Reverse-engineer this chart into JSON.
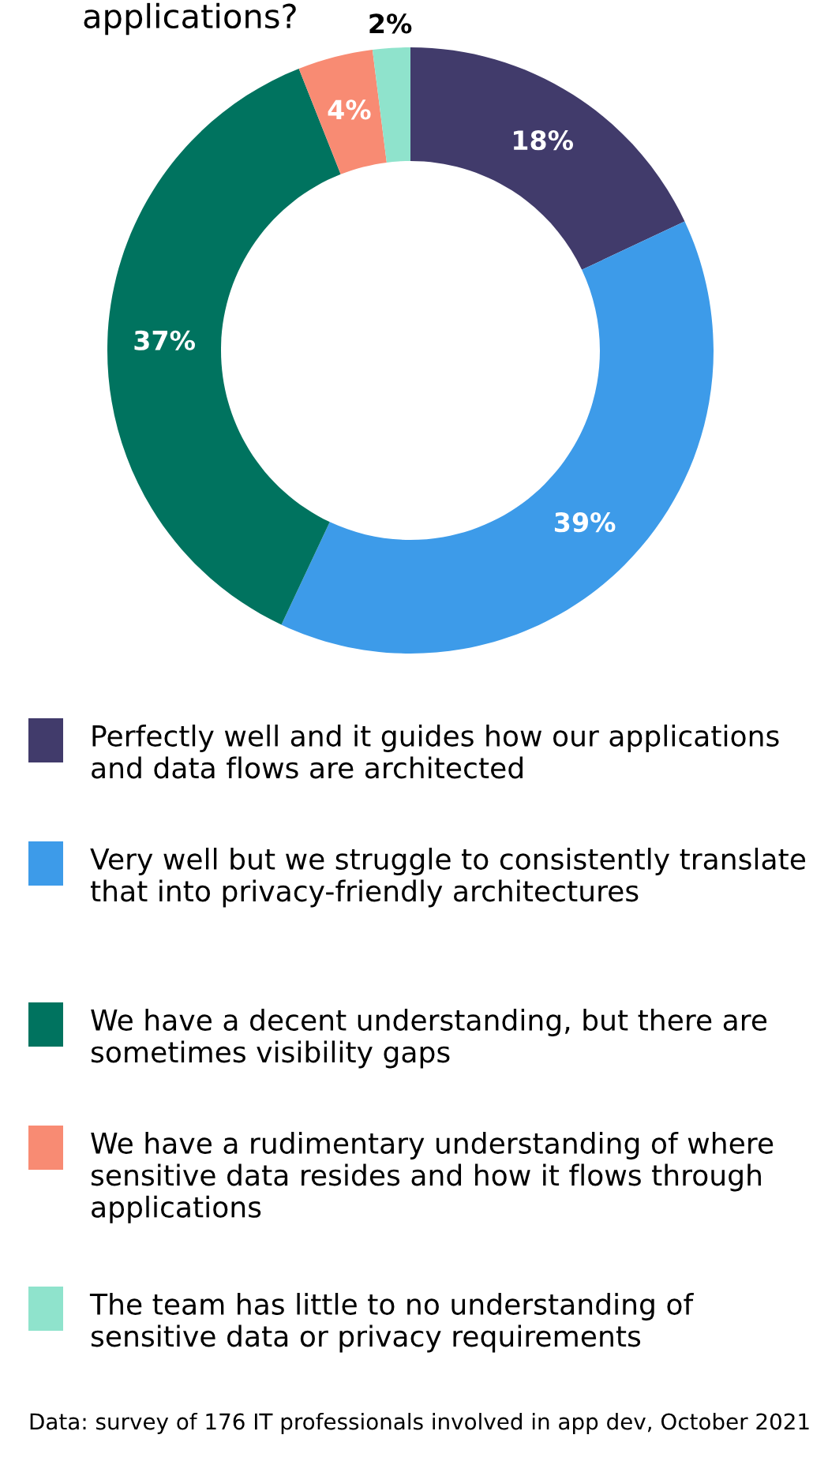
{
  "chart_data": {
    "type": "donut",
    "title": "applications?",
    "categories": [
      "Perfectly well and it guides how our applications and data flows are architected",
      "Very well but we struggle to consistently translate that into privacy-friendly architectures",
      "We have a decent understanding, but there are sometimes visibility gaps",
      "We have a rudimentary understanding of where sensitive data resides and how it flows through applications",
      "The team has little to no understanding of sensitive data or privacy requirements"
    ],
    "values": [
      18,
      39,
      37,
      4,
      2
    ],
    "value_labels": [
      "18%",
      "39%",
      "37%",
      "4%",
      "2%"
    ],
    "colors": [
      "#413b6b",
      "#3d9be9",
      "#00735f",
      "#f88b73",
      "#8fe3cc"
    ],
    "legend": "bottom",
    "annotations": [
      "Data: survey of 176 IT professionals involved in app dev, October 2021"
    ]
  }
}
